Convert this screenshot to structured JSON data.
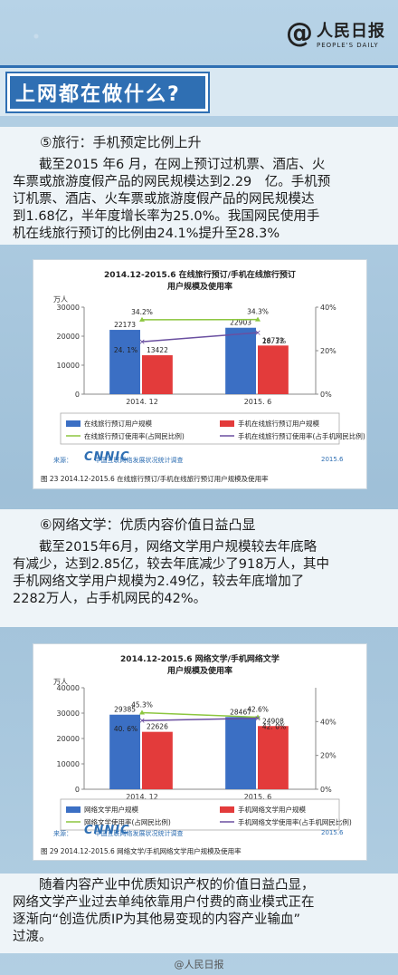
{
  "header": {
    "logo_cn": "人民日报",
    "logo_en": "PEOPLE'S DAILY"
  },
  "banner": {
    "title": "上网都在做什么?"
  },
  "section5": {
    "title": "⑤旅行：手机预定比例上升",
    "lines": [
      "截至2015 年6 月，在网上预订过机票、酒店、火",
      "车票或旅游度假产品的网民规模达到2.29　亿。手机预",
      "订机票、酒店、火车票或旅游度假产品的网民规模达",
      "到1.68亿，半年度增长率为25.0%。我国网民使用手",
      "机在线旅行预订的比例由24.1%提升至28.3%"
    ]
  },
  "chart1": {
    "title_line1": "2014.12-2015.6 在线旅行预订/手机在线旅行预订",
    "title_line2": "用户规模及使用率",
    "unit": "万人",
    "cnnic": "CNNIC",
    "source": "来源：　　　　中国互联网络发展状况统计调查",
    "source_date": "2015.6",
    "caption": "图 23 2014.12-2015.6 在线旅行预订/手机在线旅行预订用户规模及使用率"
  },
  "section6": {
    "title": "⑥网络文学：优质内容价值日益凸显",
    "lines": [
      "截至2015年6月，网络文学用户规模较去年底略",
      "有减少，达到2.85亿，较去年底减少了918万人，其中",
      "手机网络文学用户规模为2.49亿，较去年底增加了",
      "2282万人，占手机网民的42%。"
    ]
  },
  "chart2": {
    "title_line1": "2014.12-2015.6 网络文学/手机网络文学",
    "title_line2": "用户规模及使用率",
    "unit": "万人",
    "cnnic": "CNNIC",
    "source": "来源：　　　　中国互联网络发展状况统计调查",
    "source_date": "2015.6",
    "caption": "图 29 2014.12-2015.6 网络文学/手机网络文学用户规模及使用率"
  },
  "closing": {
    "lines": [
      "随着内容产业中优质知识产权的价值日益凸显，",
      "网络文学产业过去单纯依靠用户付费的商业模式正在",
      "逐渐向“创造优质IP为其他易变现的内容产业输血”",
      "过渡。"
    ]
  },
  "footer": {
    "text": "@人民日报"
  },
  "colors": {
    "blue_bar": "#3b6fc4",
    "red_bar": "#e33b3b",
    "green_line": "#8cc63f",
    "purple_line": "#6a4fa0",
    "accent": "#2f6fb3"
  },
  "chart_data": [
    {
      "type": "bar",
      "categories": [
        "2014. 12",
        "2015. 6"
      ],
      "ylim": [
        0,
        30000
      ],
      "yticks": [
        "30000",
        "20000",
        "10000",
        "0"
      ],
      "y2lim": [
        0,
        40
      ],
      "y2ticks": [
        "40%",
        "20%",
        "0%"
      ],
      "series": [
        {
          "name": "在线旅行预订用户规模",
          "kind": "bar",
          "values": [
            22173,
            22903
          ],
          "labels": [
            "22173",
            "22903"
          ]
        },
        {
          "name": "手机在线旅行预订用户规模",
          "kind": "bar",
          "values": [
            13422,
            16772
          ],
          "labels": [
            "13422",
            "16772"
          ]
        },
        {
          "name": "在线旅行预订使用率(占网民比例)",
          "kind": "line",
          "values": [
            34.2,
            34.3
          ],
          "labels": [
            "34.2%",
            "34.3%"
          ]
        },
        {
          "name": "手机在线旅行预订使用率(占手机网民比例)",
          "kind": "line",
          "values": [
            24.1,
            28.3
          ],
          "labels": [
            "24. 1%",
            "28. 3%"
          ]
        }
      ]
    },
    {
      "type": "bar",
      "categories": [
        "2014. 12",
        "2015. 6"
      ],
      "ylim": [
        0,
        40000
      ],
      "yticks": [
        "40000",
        "30000",
        "20000",
        "10000",
        "0"
      ],
      "y2lim": [
        0,
        60
      ],
      "y2ticks": [
        "40%",
        "20%",
        "0%"
      ],
      "series": [
        {
          "name": "网络文学用户规模",
          "kind": "bar",
          "values": [
            29385,
            28467
          ],
          "labels": [
            "29385",
            "28467"
          ]
        },
        {
          "name": "手机网络文学用户规模",
          "kind": "bar",
          "values": [
            22626,
            24908
          ],
          "labels": [
            "22626",
            "24908"
          ]
        },
        {
          "name": "网络文学使用率(占网民比例)",
          "kind": "line",
          "values": [
            45.3,
            42.6
          ],
          "labels": [
            "45.3%",
            "42.6%"
          ]
        },
        {
          "name": "手机网络文学使用率(占手机网民比例)",
          "kind": "line",
          "values": [
            40.6,
            42.0
          ],
          "labels": [
            "40. 6%",
            "42. 0%"
          ]
        }
      ]
    }
  ]
}
